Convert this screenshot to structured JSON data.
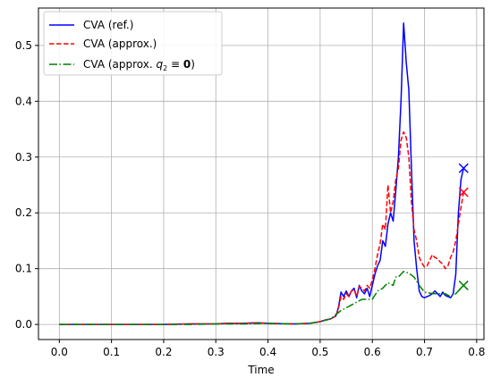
{
  "chart_data": {
    "type": "line",
    "title": "",
    "xlabel": "Time",
    "ylabel": "",
    "xlim": [
      -0.04,
      0.814
    ],
    "ylim": [
      -0.027,
      0.567
    ],
    "xticks": [
      "0.0",
      "0.1",
      "0.2",
      "0.3",
      "0.4",
      "0.5",
      "0.6",
      "0.7",
      "0.8"
    ],
    "yticks": [
      "0.0",
      "0.1",
      "0.2",
      "0.3",
      "0.4",
      "0.5"
    ],
    "grid": true,
    "legend_position": "upper-left",
    "series": [
      {
        "name": "CVA (ref.)",
        "color": "#0000ff",
        "linestyle": "solid",
        "end_marker": "x",
        "x": [
          0.0,
          0.05,
          0.1,
          0.15,
          0.2,
          0.25,
          0.3,
          0.32,
          0.35,
          0.38,
          0.4,
          0.45,
          0.48,
          0.5,
          0.51,
          0.52,
          0.53,
          0.535,
          0.54,
          0.545,
          0.55,
          0.555,
          0.56,
          0.565,
          0.57,
          0.575,
          0.58,
          0.585,
          0.59,
          0.595,
          0.6,
          0.605,
          0.61,
          0.615,
          0.62,
          0.625,
          0.63,
          0.635,
          0.64,
          0.645,
          0.65,
          0.655,
          0.66,
          0.665,
          0.67,
          0.675,
          0.68,
          0.685,
          0.69,
          0.695,
          0.7,
          0.705,
          0.71,
          0.715,
          0.72,
          0.725,
          0.73,
          0.735,
          0.74,
          0.745,
          0.75,
          0.755,
          0.76,
          0.765,
          0.77,
          0.775
        ],
        "y": [
          0.0,
          0.0,
          0.0,
          0.0,
          0.0,
          0.001,
          0.001,
          0.002,
          0.002,
          0.003,
          0.002,
          0.001,
          0.002,
          0.005,
          0.008,
          0.01,
          0.015,
          0.03,
          0.058,
          0.05,
          0.06,
          0.05,
          0.06,
          0.065,
          0.048,
          0.07,
          0.06,
          0.055,
          0.065,
          0.05,
          0.07,
          0.09,
          0.105,
          0.115,
          0.15,
          0.14,
          0.18,
          0.2,
          0.185,
          0.24,
          0.3,
          0.4,
          0.54,
          0.47,
          0.42,
          0.28,
          0.15,
          0.1,
          0.06,
          0.05,
          0.048,
          0.05,
          0.052,
          0.055,
          0.06,
          0.055,
          0.05,
          0.058,
          0.052,
          0.05,
          0.048,
          0.055,
          0.09,
          0.2,
          0.26,
          0.28
        ]
      },
      {
        "name": "CVA (approx.)",
        "color": "#ff0000",
        "linestyle": "dashed",
        "end_marker": "x",
        "x": [
          0.0,
          0.05,
          0.1,
          0.15,
          0.2,
          0.25,
          0.3,
          0.32,
          0.35,
          0.38,
          0.4,
          0.45,
          0.48,
          0.5,
          0.51,
          0.52,
          0.53,
          0.535,
          0.54,
          0.545,
          0.55,
          0.555,
          0.56,
          0.565,
          0.57,
          0.575,
          0.58,
          0.585,
          0.59,
          0.595,
          0.6,
          0.605,
          0.61,
          0.615,
          0.62,
          0.625,
          0.63,
          0.635,
          0.64,
          0.645,
          0.65,
          0.655,
          0.66,
          0.665,
          0.67,
          0.675,
          0.68,
          0.685,
          0.69,
          0.695,
          0.7,
          0.705,
          0.71,
          0.715,
          0.72,
          0.725,
          0.73,
          0.735,
          0.74,
          0.745,
          0.75,
          0.755,
          0.76,
          0.765,
          0.77,
          0.775
        ],
        "y": [
          0.0,
          0.0,
          0.0,
          0.0,
          0.0,
          0.001,
          0.001,
          0.002,
          0.002,
          0.003,
          0.002,
          0.001,
          0.002,
          0.005,
          0.008,
          0.01,
          0.015,
          0.028,
          0.05,
          0.045,
          0.055,
          0.05,
          0.06,
          0.062,
          0.05,
          0.068,
          0.065,
          0.06,
          0.07,
          0.065,
          0.08,
          0.1,
          0.125,
          0.145,
          0.18,
          0.17,
          0.25,
          0.2,
          0.22,
          0.26,
          0.28,
          0.33,
          0.345,
          0.335,
          0.3,
          0.22,
          0.17,
          0.15,
          0.12,
          0.11,
          0.103,
          0.105,
          0.115,
          0.125,
          0.12,
          0.118,
          0.112,
          0.108,
          0.1,
          0.105,
          0.12,
          0.13,
          0.15,
          0.18,
          0.21,
          0.237
        ]
      },
      {
        "name": "CVA (approx. q₂ ≡ 0)",
        "color": "#008000",
        "linestyle": "dashdot",
        "end_marker": "x",
        "x": [
          0.0,
          0.05,
          0.1,
          0.15,
          0.2,
          0.25,
          0.3,
          0.35,
          0.4,
          0.45,
          0.48,
          0.5,
          0.52,
          0.54,
          0.56,
          0.58,
          0.6,
          0.61,
          0.62,
          0.63,
          0.64,
          0.645,
          0.65,
          0.66,
          0.67,
          0.68,
          0.69,
          0.7,
          0.71,
          0.72,
          0.73,
          0.74,
          0.75,
          0.76,
          0.77,
          0.775
        ],
        "y": [
          0.0,
          0.0,
          0.0,
          0.0,
          0.0,
          0.0,
          0.001,
          0.001,
          0.002,
          0.001,
          0.002,
          0.005,
          0.01,
          0.025,
          0.035,
          0.045,
          0.045,
          0.06,
          0.065,
          0.075,
          0.07,
          0.085,
          0.085,
          0.095,
          0.092,
          0.085,
          0.07,
          0.058,
          0.056,
          0.055,
          0.055,
          0.055,
          0.05,
          0.055,
          0.065,
          0.07
        ]
      }
    ]
  },
  "legend": {
    "items": [
      {
        "label": "CVA (ref.)"
      },
      {
        "label": "CVA (approx.)"
      },
      {
        "label_prefix": "CVA (approx. ",
        "label_var": "q",
        "label_sub": "2",
        "label_eq": " ≡ ",
        "label_bold": "0",
        "label_suffix": ")"
      }
    ]
  }
}
